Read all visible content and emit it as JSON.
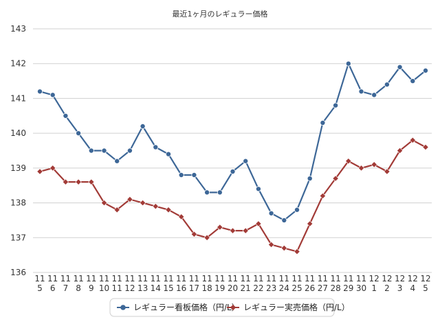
{
  "chart_data": {
    "type": "line",
    "title": "最近1ヶ月のレギュラー価格",
    "xlabel": "",
    "ylabel": "",
    "ylim": [
      136,
      143
    ],
    "yticks": [
      136,
      137,
      138,
      139,
      140,
      141,
      142,
      143
    ],
    "grid": true,
    "legend_position": "bottom",
    "categories": [
      [
        "11",
        "5"
      ],
      [
        "11",
        "6"
      ],
      [
        "11",
        "7"
      ],
      [
        "11",
        "8"
      ],
      [
        "11",
        "9"
      ],
      [
        "11",
        "10"
      ],
      [
        "11",
        "11"
      ],
      [
        "11",
        "12"
      ],
      [
        "11",
        "13"
      ],
      [
        "11",
        "14"
      ],
      [
        "11",
        "15"
      ],
      [
        "11",
        "16"
      ],
      [
        "11",
        "17"
      ],
      [
        "11",
        "18"
      ],
      [
        "11",
        "19"
      ],
      [
        "11",
        "20"
      ],
      [
        "11",
        "21"
      ],
      [
        "11",
        "22"
      ],
      [
        "11",
        "23"
      ],
      [
        "11",
        "24"
      ],
      [
        "11",
        "25"
      ],
      [
        "11",
        "26"
      ],
      [
        "11",
        "27"
      ],
      [
        "11",
        "28"
      ],
      [
        "11",
        "29"
      ],
      [
        "11",
        "30"
      ],
      [
        "12",
        "1"
      ],
      [
        "12",
        "2"
      ],
      [
        "12",
        "3"
      ],
      [
        "12",
        "4"
      ],
      [
        "12",
        "5"
      ]
    ],
    "series": [
      {
        "name": "レギュラー看板価格（円/L）",
        "color": "#3d6797",
        "marker": "circle",
        "values": [
          141.2,
          141.1,
          140.5,
          140.0,
          139.5,
          139.5,
          139.2,
          139.5,
          140.2,
          139.6,
          139.4,
          138.8,
          138.8,
          138.3,
          138.3,
          138.9,
          139.2,
          138.4,
          137.7,
          137.5,
          137.8,
          138.7,
          140.3,
          140.8,
          142.0,
          141.2,
          141.1,
          141.4,
          141.9,
          141.5,
          141.8
        ]
      },
      {
        "name": "レギュラー実売価格（円/L）",
        "color": "#a23b37",
        "marker": "diamond",
        "values": [
          138.9,
          139.0,
          138.6,
          138.6,
          138.6,
          138.0,
          137.8,
          138.1,
          138.0,
          137.9,
          137.8,
          137.6,
          137.1,
          137.0,
          137.3,
          137.2,
          137.2,
          137.4,
          136.8,
          136.7,
          136.6,
          137.4,
          138.2,
          138.7,
          139.2,
          139.0,
          139.1,
          138.9,
          139.5,
          139.8,
          139.6
        ]
      }
    ]
  }
}
